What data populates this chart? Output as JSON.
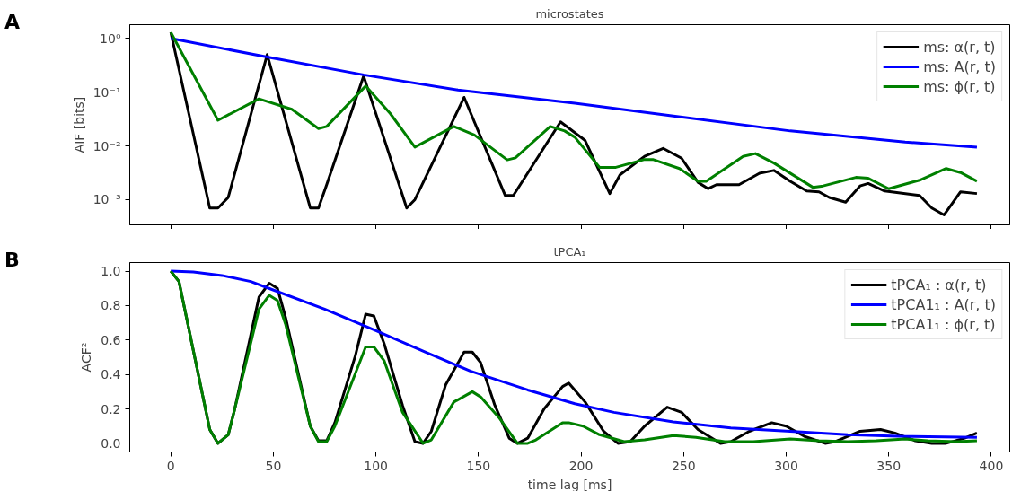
{
  "chart_data": [
    {
      "type": "line",
      "title": "microstates",
      "ylabel": "AIF [bits]",
      "annotations": [
        "A"
      ],
      "log": "y",
      "grid": false,
      "legend": "top right",
      "tick_labels": "y",
      "xlim": [
        -20,
        409
      ],
      "xticks": [
        0,
        50,
        100,
        150,
        200,
        250,
        300,
        350,
        400
      ],
      "ylim": [
        0.00034,
        1.8
      ],
      "yticks": [
        {
          "value": 1,
          "label": "10⁰"
        },
        {
          "value": 0.1,
          "label": "10⁻¹"
        },
        {
          "value": 0.01,
          "label": "10⁻²"
        },
        {
          "value": 0.001,
          "label": "10⁻³"
        }
      ],
      "series": [
        {
          "name": "ms: α(r, t)",
          "color": "#000000",
          "x": [
            0,
            19,
            23,
            28,
            47,
            68,
            72,
            76,
            94,
            115,
            119,
            143,
            163,
            167,
            190,
            202,
            214,
            219,
            231,
            240,
            249,
            257,
            262,
            266,
            277,
            287,
            294,
            302,
            310,
            316,
            321,
            329,
            336,
            340,
            348,
            365,
            371,
            377,
            385,
            393
          ],
          "values": [
            1.3,
            0.0007,
            0.0007,
            0.0011,
            0.5,
            0.0007,
            0.0007,
            0.0019,
            0.2,
            0.0007,
            0.001,
            0.08,
            0.0012,
            0.0012,
            0.028,
            0.0126,
            0.0013,
            0.0029,
            0.0064,
            0.009,
            0.0059,
            0.0021,
            0.0016,
            0.0019,
            0.0019,
            0.0031,
            0.0035,
            0.0022,
            0.00145,
            0.0014,
            0.0011,
            0.0009,
            0.0018,
            0.002,
            0.00145,
            0.0012,
            0.0007,
            0.00052,
            0.0014,
            0.0013
          ]
        },
        {
          "name": "ms: A(r, t)",
          "color": "#0000ff",
          "x": [
            0,
            47,
            94,
            140,
            197,
            245,
            302,
            358,
            393
          ],
          "values": [
            1.0,
            0.45,
            0.21,
            0.11,
            0.062,
            0.036,
            0.019,
            0.0118,
            0.0095
          ]
        },
        {
          "name": "ms: ϕ(r, t)",
          "color": "#008000",
          "x": [
            0,
            23,
            43,
            59,
            72,
            76,
            95,
            107,
            119,
            138,
            148,
            164,
            168,
            185,
            192,
            197,
            209,
            217,
            231,
            235,
            248,
            257,
            261,
            279,
            285,
            294,
            313,
            318,
            334,
            340,
            350,
            365,
            378,
            385,
            393
          ],
          "values": [
            1.3,
            0.03,
            0.075,
            0.048,
            0.021,
            0.023,
            0.13,
            0.04,
            0.0095,
            0.023,
            0.016,
            0.0055,
            0.006,
            0.023,
            0.019,
            0.0145,
            0.004,
            0.004,
            0.0056,
            0.0056,
            0.0038,
            0.0022,
            0.0022,
            0.0064,
            0.0072,
            0.0048,
            0.0017,
            0.0018,
            0.0026,
            0.0025,
            0.0016,
            0.0023,
            0.0038,
            0.0032,
            0.0022
          ]
        }
      ]
    },
    {
      "type": "line",
      "title": "tPCA₁",
      "xlabel": "time lag [ms]",
      "ylabel": "ACF²",
      "annotations": [
        "B"
      ],
      "grid": false,
      "legend": "top right",
      "xlim": [
        -20,
        409
      ],
      "xticks": [
        0,
        50,
        100,
        150,
        200,
        250,
        300,
        350,
        400
      ],
      "ylim": [
        -0.05,
        1.05
      ],
      "yticks": [
        {
          "value": 0,
          "label": "0.0"
        },
        {
          "value": 0.2,
          "label": "0.2"
        },
        {
          "value": 0.4,
          "label": "0.4"
        },
        {
          "value": 0.6,
          "label": "0.6"
        },
        {
          "value": 0.8,
          "label": "0.8"
        },
        {
          "value": 1,
          "label": "1.0"
        }
      ],
      "series": [
        {
          "name": "tPCA₁ : α(r, t)",
          "color": "#000000",
          "x": [
            0,
            4,
            19,
            23,
            28,
            31,
            43,
            48,
            52,
            56,
            68,
            72,
            76,
            80,
            90,
            95,
            99,
            104,
            113,
            119,
            123,
            127,
            134,
            143,
            147,
            151,
            158,
            165,
            169,
            174,
            182,
            191,
            194,
            202,
            211,
            218,
            224,
            231,
            242,
            249,
            257,
            268,
            273,
            282,
            293,
            300,
            309,
            319,
            324,
            336,
            346,
            353,
            363,
            371,
            378,
            387,
            393
          ],
          "values": [
            1.0,
            0.94,
            0.08,
            0.0,
            0.05,
            0.19,
            0.85,
            0.93,
            0.9,
            0.73,
            0.1,
            0.015,
            0.015,
            0.12,
            0.51,
            0.75,
            0.74,
            0.58,
            0.22,
            0.01,
            0.0,
            0.07,
            0.34,
            0.53,
            0.53,
            0.47,
            0.22,
            0.03,
            0.0,
            0.03,
            0.2,
            0.33,
            0.35,
            0.24,
            0.07,
            0.0,
            0.01,
            0.1,
            0.21,
            0.18,
            0.08,
            0.0,
            0.01,
            0.07,
            0.12,
            0.1,
            0.04,
            0.0,
            0.01,
            0.07,
            0.08,
            0.06,
            0.015,
            0.0,
            0.0,
            0.03,
            0.06
          ]
        },
        {
          "name": "tPCA1₁ : A(r, t)",
          "color": "#0000ff",
          "x": [
            0,
            11,
            25,
            39,
            49,
            75,
            99,
            124,
            146,
            174,
            197,
            216,
            245,
            273,
            302,
            330,
            358,
            393
          ],
          "values": [
            1.0,
            0.995,
            0.975,
            0.94,
            0.895,
            0.78,
            0.66,
            0.53,
            0.42,
            0.31,
            0.23,
            0.18,
            0.125,
            0.09,
            0.07,
            0.05,
            0.04,
            0.035
          ]
        },
        {
          "name": "tPCA1₁ : ϕ(r, t)",
          "color": "#008000",
          "x": [
            0,
            4,
            19,
            23,
            28,
            31,
            43,
            48,
            52,
            56,
            68,
            72,
            76,
            80,
            95,
            99,
            104,
            113,
            123,
            127,
            138,
            147,
            151,
            160,
            169,
            174,
            178,
            191,
            194,
            201,
            209,
            221,
            231,
            245,
            256,
            270,
            284,
            302,
            316,
            330,
            344,
            358,
            369,
            383,
            393
          ],
          "values": [
            1.0,
            0.94,
            0.08,
            0.0,
            0.05,
            0.19,
            0.78,
            0.86,
            0.83,
            0.69,
            0.1,
            0.01,
            0.01,
            0.1,
            0.56,
            0.56,
            0.48,
            0.18,
            0.0,
            0.02,
            0.24,
            0.3,
            0.27,
            0.15,
            0.0,
            0.0,
            0.02,
            0.12,
            0.12,
            0.1,
            0.05,
            0.01,
            0.02,
            0.045,
            0.035,
            0.01,
            0.01,
            0.025,
            0.015,
            0.01,
            0.015,
            0.025,
            0.015,
            0.01,
            0.015
          ]
        }
      ]
    }
  ]
}
